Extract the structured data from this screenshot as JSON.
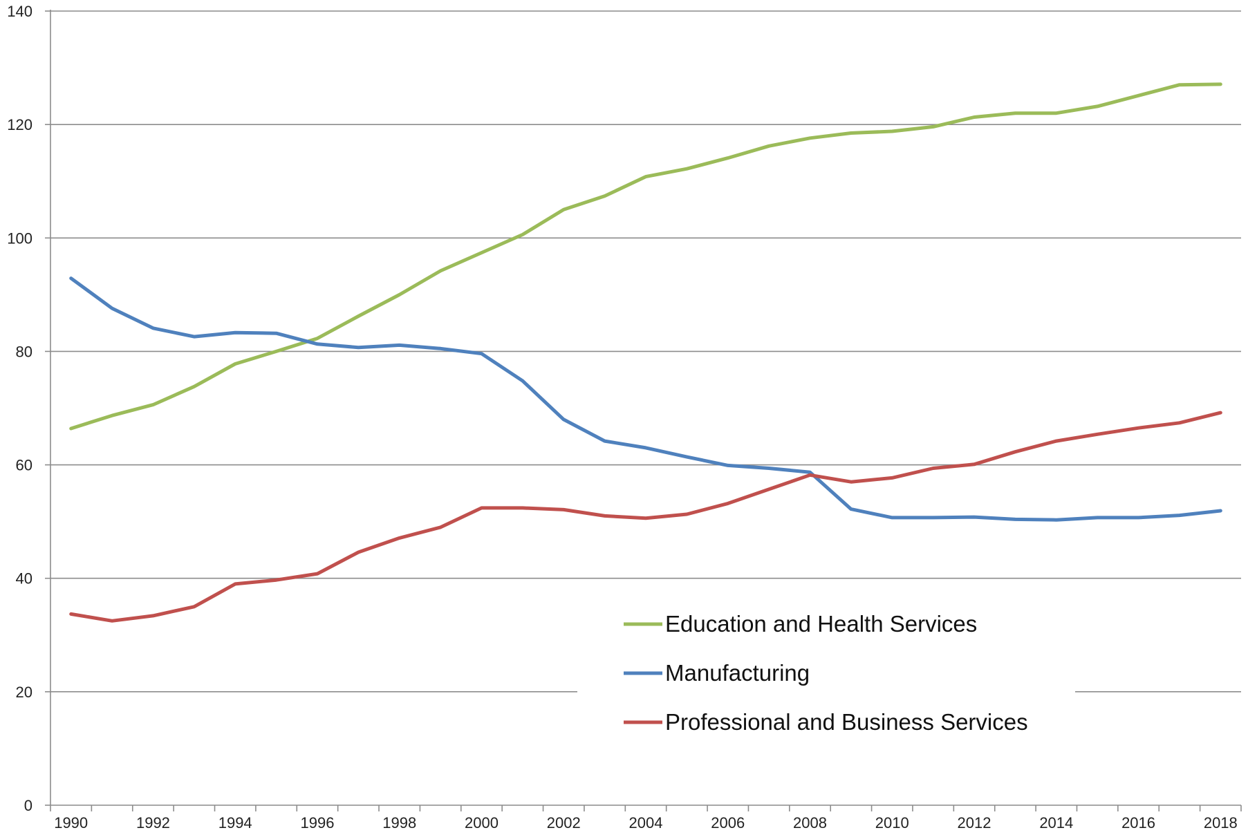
{
  "chart_data": {
    "type": "line",
    "title": "",
    "xlabel": "",
    "ylabel": "",
    "x": [
      1990,
      1991,
      1992,
      1993,
      1994,
      1995,
      1996,
      1997,
      1998,
      1999,
      2000,
      2001,
      2002,
      2003,
      2004,
      2005,
      2006,
      2007,
      2008,
      2009,
      2010,
      2011,
      2012,
      2013,
      2014,
      2015,
      2016,
      2017,
      2018
    ],
    "x_tick_labels": [
      "1990",
      "1992",
      "1994",
      "1996",
      "1998",
      "2000",
      "2002",
      "2004",
      "2006",
      "2008",
      "2010",
      "2012",
      "2014",
      "2016",
      "2018"
    ],
    "y_tick_labels": [
      "0",
      "20",
      "40",
      "60",
      "80",
      "100",
      "120",
      "140"
    ],
    "ylim": [
      0,
      140
    ],
    "grid": true,
    "legend_position": "center-right, lower area",
    "series": [
      {
        "name": "Education and Health Services",
        "color": "#9bbb59",
        "values": [
          66.4,
          68.7,
          70.6,
          73.8,
          77.8,
          80.0,
          82.3,
          86.2,
          90.0,
          94.2,
          97.4,
          100.6,
          105.0,
          107.4,
          110.8,
          112.2,
          114.1,
          116.2,
          117.6,
          118.5,
          118.8,
          119.6,
          121.3,
          122.0,
          122.0,
          123.2,
          125.1,
          127.0,
          127.1
        ]
      },
      {
        "name": "Manufacturing",
        "color": "#4f81bd",
        "values": [
          92.9,
          87.6,
          84.1,
          82.6,
          83.3,
          83.2,
          81.3,
          80.7,
          81.1,
          80.5,
          79.6,
          74.8,
          68.0,
          64.2,
          63.0,
          61.4,
          59.9,
          59.4,
          58.7,
          52.2,
          50.7,
          50.7,
          50.8,
          50.4,
          50.3,
          50.7,
          50.7,
          51.1,
          51.9
        ]
      },
      {
        "name": "Professional and Business Services",
        "color": "#c0504d",
        "values": [
          33.7,
          32.5,
          33.4,
          35.0,
          39.0,
          39.7,
          40.8,
          44.6,
          47.1,
          49.0,
          52.4,
          52.4,
          52.1,
          51.0,
          50.6,
          51.3,
          53.2,
          55.7,
          58.2,
          57.0,
          57.7,
          59.4,
          60.1,
          62.3,
          64.2,
          65.4,
          66.5,
          67.4,
          69.2
        ]
      }
    ]
  }
}
